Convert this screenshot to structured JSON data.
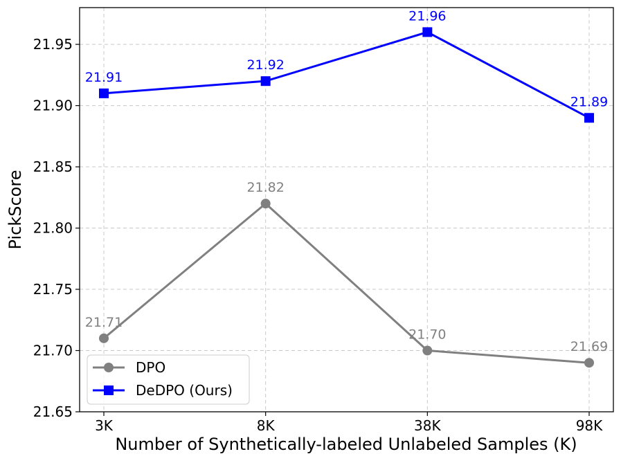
{
  "chart_data": {
    "type": "line",
    "title": "",
    "xlabel": "Number of Synthetically-labeled Unlabeled Samples (K)",
    "ylabel": "PickScore",
    "categories": [
      "3K",
      "8K",
      "38K",
      "98K"
    ],
    "ylim": [
      21.65,
      21.98
    ],
    "yticks": [
      "21.65",
      "21.70",
      "21.75",
      "21.80",
      "21.85",
      "21.90",
      "21.95"
    ],
    "grid": true,
    "legend_position": "bottom-left",
    "series": [
      {
        "name": "DPO",
        "values": [
          21.71,
          21.82,
          21.7,
          21.69
        ],
        "labels": [
          "21.71",
          "21.82",
          "21.70",
          "21.69"
        ],
        "color": "#808080",
        "marker": "circle"
      },
      {
        "name": "DeDPO (Ours)",
        "values": [
          21.91,
          21.92,
          21.96,
          21.89
        ],
        "labels": [
          "21.91",
          "21.92",
          "21.96",
          "21.89"
        ],
        "color": "#0000ff",
        "marker": "square"
      }
    ]
  }
}
